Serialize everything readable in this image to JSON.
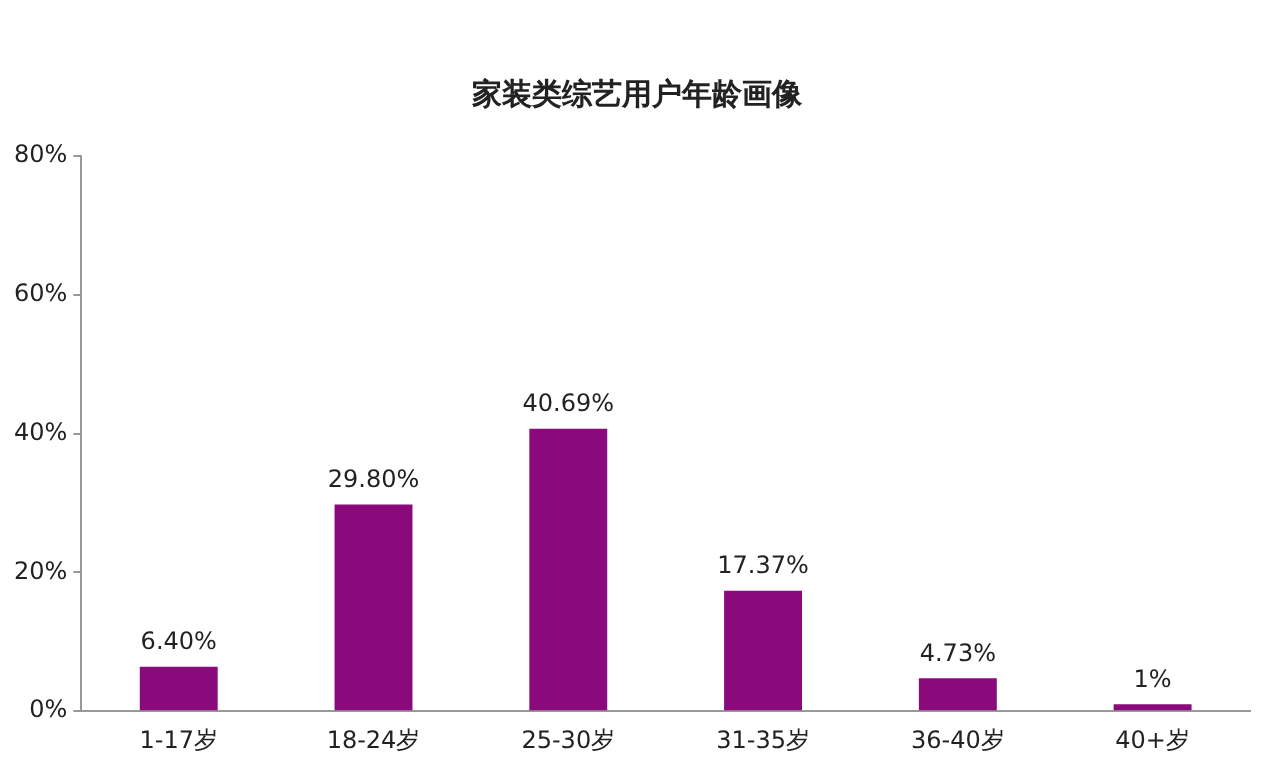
{
  "chart_data": {
    "type": "bar",
    "title": "家装类综艺用户年龄画像",
    "categories": [
      "1-17岁",
      "18-24岁",
      "25-30岁",
      "31-35岁",
      "36-40岁",
      "40+岁"
    ],
    "values": [
      6.4,
      29.8,
      40.69,
      17.37,
      4.73,
      1
    ],
    "value_labels": [
      "6.40%",
      "29.80%",
      "40.69%",
      "17.37%",
      "4.73%",
      "1%"
    ],
    "color": "#8b0a7b",
    "ylim": [
      0,
      80
    ],
    "yticks": [
      {
        "value": 0,
        "label": "0%"
      },
      {
        "value": 20,
        "label": "20%"
      },
      {
        "value": 40,
        "label": "40%"
      },
      {
        "value": 60,
        "label": "60%"
      },
      {
        "value": 80,
        "label": "80%"
      }
    ],
    "grid": false,
    "legend": false
  }
}
